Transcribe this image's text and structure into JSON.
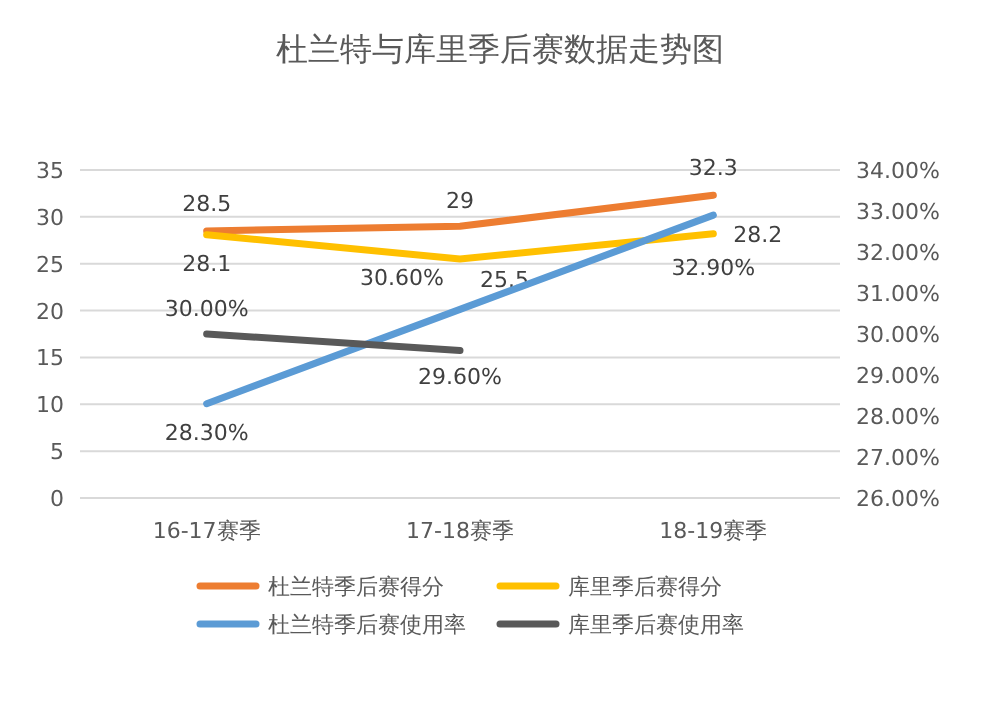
{
  "chart_data": {
    "type": "line",
    "title": "杜兰特与库里季后赛数据走势图",
    "categories": [
      "16-17赛季",
      "17-18赛季",
      "18-19赛季"
    ],
    "series": [
      {
        "name": "杜兰特季后赛得分",
        "color": "#ed7d31",
        "values": [
          28.5,
          29,
          32.3
        ],
        "value_labels": [
          "28.5",
          "29",
          "32.3"
        ]
      },
      {
        "name": "库里季后赛得分",
        "color": "#ffc000",
        "values": [
          28.1,
          25.5,
          28.2
        ],
        "value_labels": [
          "28.1",
          "25.5",
          "28.2"
        ]
      },
      {
        "name": "杜兰特季后赛使用率",
        "axis": "y2",
        "color": "#5b9bd5",
        "values": [
          28.3,
          30.6,
          32.9
        ],
        "value_labels": [
          "28.30%",
          "30.60%",
          "32.90%"
        ]
      },
      {
        "name": "库里季后赛使用率",
        "axis": "y2",
        "color": "#595959",
        "values": [
          30.0,
          29.6,
          null
        ],
        "value_labels": [
          "30.00%",
          "29.60%",
          null
        ]
      }
    ],
    "ylim": [
      0,
      35
    ],
    "yticks": [
      0,
      5,
      10,
      15,
      20,
      25,
      30,
      35
    ],
    "y2lim": [
      26,
      34
    ],
    "y2ticks": [
      {
        "value": 26,
        "label": "26.00%"
      },
      {
        "value": 27,
        "label": "27.00%"
      },
      {
        "value": 28,
        "label": "28.00%"
      },
      {
        "value": 29,
        "label": "29.00%"
      },
      {
        "value": 30,
        "label": "30.00%"
      },
      {
        "value": 31,
        "label": "31.00%"
      },
      {
        "value": 32,
        "label": "32.00%"
      },
      {
        "value": 33,
        "label": "33.00%"
      },
      {
        "value": 34,
        "label": "34.00%"
      }
    ],
    "grid": "y",
    "legend": "bottom",
    "marker": "none",
    "line_style": "solid"
  }
}
